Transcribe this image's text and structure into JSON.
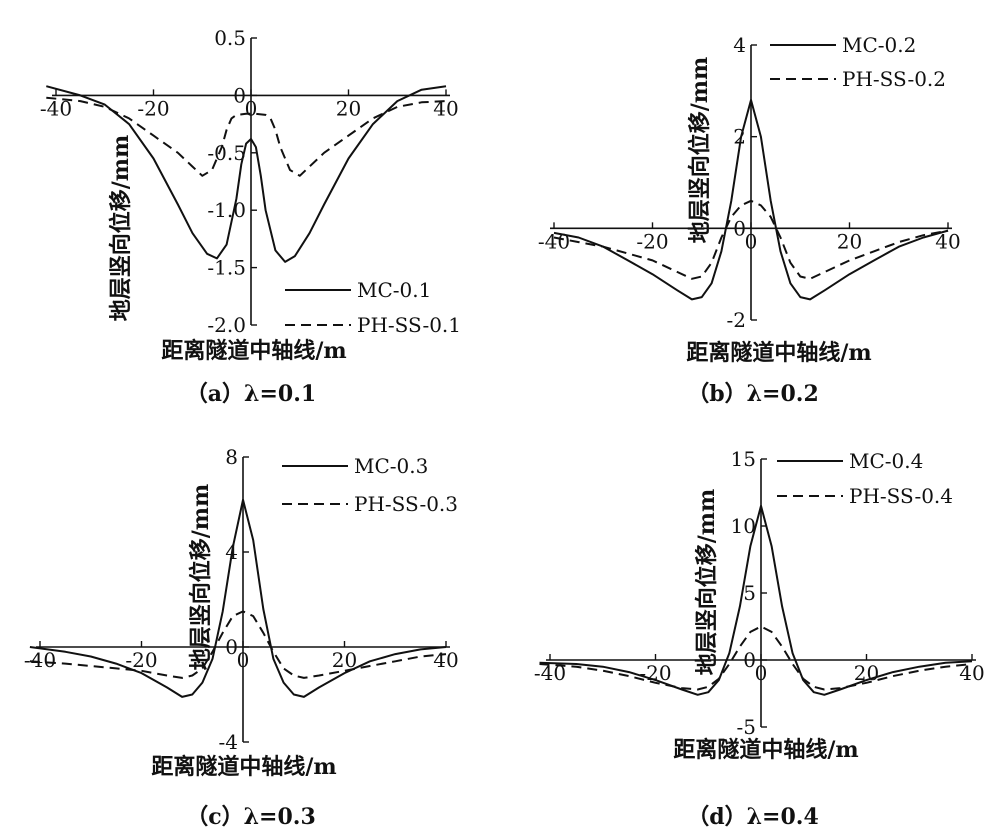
{
  "chart_data": [
    {
      "type": "line",
      "caption": "（a）λ=0.1",
      "xlabel": "距离隧道中轴线/m",
      "ylabel": "地层竖向位移/mm",
      "xlim": [
        -40,
        40
      ],
      "ylim": [
        -2.0,
        0.5
      ],
      "xticks": [
        "-40",
        "-20",
        "0",
        "20",
        "40"
      ],
      "yticks": [
        "0.5",
        "0",
        "-0.5",
        "-1.0",
        "-1.5",
        "-2.0"
      ],
      "legend_position": "bottom-right",
      "series": [
        {
          "name": "MC-0.1",
          "style": "solid",
          "x": [
            -42,
            -35,
            -30,
            -25,
            -20,
            -15,
            -12,
            -9,
            -7,
            -5,
            -3,
            -2,
            -1,
            0,
            1,
            2,
            3,
            5,
            7,
            9,
            12,
            15,
            20,
            25,
            30,
            35,
            40
          ],
          "y": [
            0.08,
            0.0,
            -0.08,
            -0.25,
            -0.55,
            -0.95,
            -1.2,
            -1.38,
            -1.42,
            -1.3,
            -0.9,
            -0.6,
            -0.42,
            -0.38,
            -0.45,
            -0.7,
            -1.0,
            -1.35,
            -1.45,
            -1.4,
            -1.2,
            -0.95,
            -0.55,
            -0.25,
            -0.05,
            0.05,
            0.08
          ]
        },
        {
          "name": "PH-SS-0.1",
          "style": "dashed",
          "x": [
            -42,
            -35,
            -30,
            -25,
            -20,
            -15,
            -12,
            -10,
            -8,
            -6,
            -5,
            -4,
            -3,
            -1,
            0,
            1,
            3,
            4,
            5,
            6,
            8,
            10,
            12,
            15,
            20,
            25,
            30,
            35,
            40
          ],
          "y": [
            -0.02,
            -0.05,
            -0.1,
            -0.2,
            -0.35,
            -0.5,
            -0.62,
            -0.7,
            -0.65,
            -0.45,
            -0.3,
            -0.2,
            -0.17,
            -0.16,
            -0.16,
            -0.16,
            -0.17,
            -0.2,
            -0.3,
            -0.45,
            -0.65,
            -0.7,
            -0.62,
            -0.5,
            -0.35,
            -0.2,
            -0.1,
            -0.06,
            -0.05
          ]
        }
      ]
    },
    {
      "type": "line",
      "caption": "（b）λ=0.2",
      "xlabel": "距离隧道中轴线/m",
      "ylabel": "地层竖向位移/mm",
      "xlim": [
        -40,
        40
      ],
      "ylim": [
        -2,
        4
      ],
      "xticks": [
        "-40",
        "-20",
        "0",
        "20",
        "40"
      ],
      "yticks": [
        "4",
        "2",
        "0",
        "-2"
      ],
      "legend_position": "top-right",
      "series": [
        {
          "name": "MC-0.2",
          "style": "solid",
          "x": [
            -40,
            -35,
            -30,
            -25,
            -20,
            -15,
            -12,
            -10,
            -8,
            -6,
            -4,
            -2,
            0,
            2,
            4,
            6,
            8,
            10,
            12,
            15,
            20,
            25,
            30,
            35,
            40
          ],
          "y": [
            -0.1,
            -0.2,
            -0.4,
            -0.7,
            -1.0,
            -1.35,
            -1.55,
            -1.5,
            -1.2,
            -0.5,
            0.6,
            2.0,
            2.8,
            2.0,
            0.6,
            -0.5,
            -1.2,
            -1.5,
            -1.55,
            -1.35,
            -1.0,
            -0.7,
            -0.4,
            -0.2,
            -0.05
          ]
        },
        {
          "name": "PH-SS-0.2",
          "style": "dashed",
          "x": [
            -40,
            -35,
            -30,
            -25,
            -20,
            -15,
            -12,
            -10,
            -8,
            -6,
            -4,
            -2,
            0,
            2,
            4,
            6,
            8,
            10,
            12,
            15,
            20,
            25,
            30,
            35,
            40
          ],
          "y": [
            -0.2,
            -0.3,
            -0.4,
            -0.55,
            -0.7,
            -0.95,
            -1.1,
            -1.05,
            -0.75,
            -0.2,
            0.25,
            0.5,
            0.6,
            0.5,
            0.25,
            -0.2,
            -0.75,
            -1.05,
            -1.1,
            -0.95,
            -0.7,
            -0.5,
            -0.3,
            -0.15,
            -0.05
          ]
        }
      ]
    },
    {
      "type": "line",
      "caption": "（c）λ=0.3",
      "xlabel": "距离隧道中轴线/m",
      "ylabel": "地层竖向位移/mm",
      "xlim": [
        -40,
        40
      ],
      "ylim": [
        -4,
        8
      ],
      "xticks": [
        "-40",
        "-20",
        "0",
        "20",
        "40"
      ],
      "yticks": [
        "8",
        "4",
        "0",
        "-4"
      ],
      "legend_position": "top-right",
      "series": [
        {
          "name": "MC-0.3",
          "style": "solid",
          "x": [
            -42,
            -35,
            -30,
            -25,
            -20,
            -15,
            -12,
            -10,
            -8,
            -6,
            -4,
            -2,
            0,
            2,
            4,
            6,
            8,
            10,
            12,
            15,
            20,
            25,
            30,
            35,
            40
          ],
          "y": [
            0.0,
            -0.2,
            -0.4,
            -0.7,
            -1.1,
            -1.7,
            -2.1,
            -2.0,
            -1.5,
            -0.5,
            1.5,
            4.2,
            6.2,
            4.5,
            1.6,
            -0.5,
            -1.5,
            -2.0,
            -2.1,
            -1.7,
            -1.1,
            -0.6,
            -0.3,
            -0.1,
            0.0
          ]
        },
        {
          "name": "PH-SS-0.3",
          "style": "dashed",
          "x": [
            -42,
            -35,
            -30,
            -25,
            -20,
            -15,
            -12,
            -10,
            -8,
            -6,
            -4,
            -2,
            0,
            2,
            4,
            6,
            8,
            10,
            12,
            15,
            20,
            25,
            30,
            35,
            40
          ],
          "y": [
            -0.6,
            -0.7,
            -0.8,
            -0.9,
            -1.0,
            -1.2,
            -1.3,
            -1.2,
            -0.9,
            -0.2,
            0.6,
            1.3,
            1.5,
            1.3,
            0.6,
            -0.2,
            -0.9,
            -1.2,
            -1.3,
            -1.2,
            -1.0,
            -0.8,
            -0.6,
            -0.4,
            -0.3
          ]
        }
      ]
    },
    {
      "type": "line",
      "caption": "（d）λ=0.4",
      "xlabel": "距离隧道中轴线/m",
      "ylabel": "地层竖向位移/mm",
      "xlim": [
        -40,
        40
      ],
      "ylim": [
        -5,
        15
      ],
      "xticks": [
        "-40",
        "-20",
        "0",
        "20",
        "40"
      ],
      "yticks": [
        "15",
        "10",
        "5",
        "0",
        "-5"
      ],
      "legend_position": "top-right",
      "series": [
        {
          "name": "MC-0.4",
          "style": "solid",
          "x": [
            -42,
            -35,
            -30,
            -25,
            -20,
            -15,
            -12,
            -10,
            -8,
            -6,
            -4,
            -2,
            0,
            2,
            4,
            6,
            8,
            10,
            12,
            15,
            20,
            25,
            30,
            35,
            40
          ],
          "y": [
            -0.2,
            -0.3,
            -0.5,
            -0.9,
            -1.5,
            -2.2,
            -2.6,
            -2.4,
            -1.5,
            0.5,
            4.0,
            8.5,
            11.5,
            8.5,
            4.0,
            0.5,
            -1.5,
            -2.4,
            -2.6,
            -2.2,
            -1.5,
            -0.9,
            -0.5,
            -0.2,
            -0.1
          ]
        },
        {
          "name": "PH-SS-0.4",
          "style": "dashed",
          "x": [
            -42,
            -35,
            -30,
            -25,
            -20,
            -15,
            -12,
            -10,
            -8,
            -6,
            -4,
            -2,
            0,
            2,
            4,
            6,
            8,
            10,
            12,
            15,
            20,
            25,
            30,
            35,
            40
          ],
          "y": [
            -0.3,
            -0.5,
            -0.8,
            -1.2,
            -1.7,
            -2.1,
            -2.2,
            -2.0,
            -1.4,
            -0.3,
            1.0,
            2.1,
            2.5,
            2.1,
            1.0,
            -0.3,
            -1.4,
            -2.0,
            -2.2,
            -2.1,
            -1.7,
            -1.2,
            -0.8,
            -0.5,
            -0.3
          ]
        }
      ]
    }
  ]
}
